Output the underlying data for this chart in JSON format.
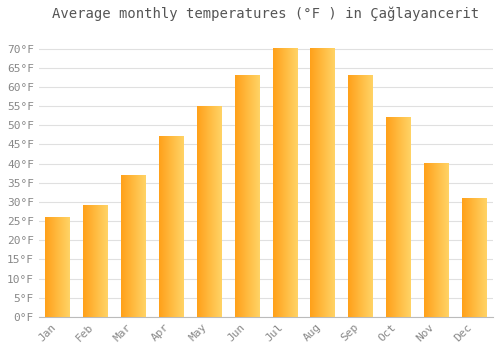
{
  "title": "Average monthly temperatures (°F ) in Çağlayancerit",
  "months": [
    "Jan",
    "Feb",
    "Mar",
    "Apr",
    "May",
    "Jun",
    "Jul",
    "Aug",
    "Sep",
    "Oct",
    "Nov",
    "Dec"
  ],
  "values": [
    26,
    29,
    37,
    47,
    55,
    63,
    70,
    70,
    63,
    52,
    40,
    31
  ],
  "bar_color_left": "#FFA020",
  "bar_color_right": "#FFD070",
  "background_color": "#FFFFFF",
  "grid_color": "#E0E0E0",
  "text_color": "#888888",
  "title_color": "#555555",
  "ylim": [
    0,
    75
  ],
  "yticks": [
    0,
    5,
    10,
    15,
    20,
    25,
    30,
    35,
    40,
    45,
    50,
    55,
    60,
    65,
    70
  ],
  "ylabel_suffix": "°F",
  "title_fontsize": 10,
  "tick_fontsize": 8,
  "font_family": "monospace"
}
